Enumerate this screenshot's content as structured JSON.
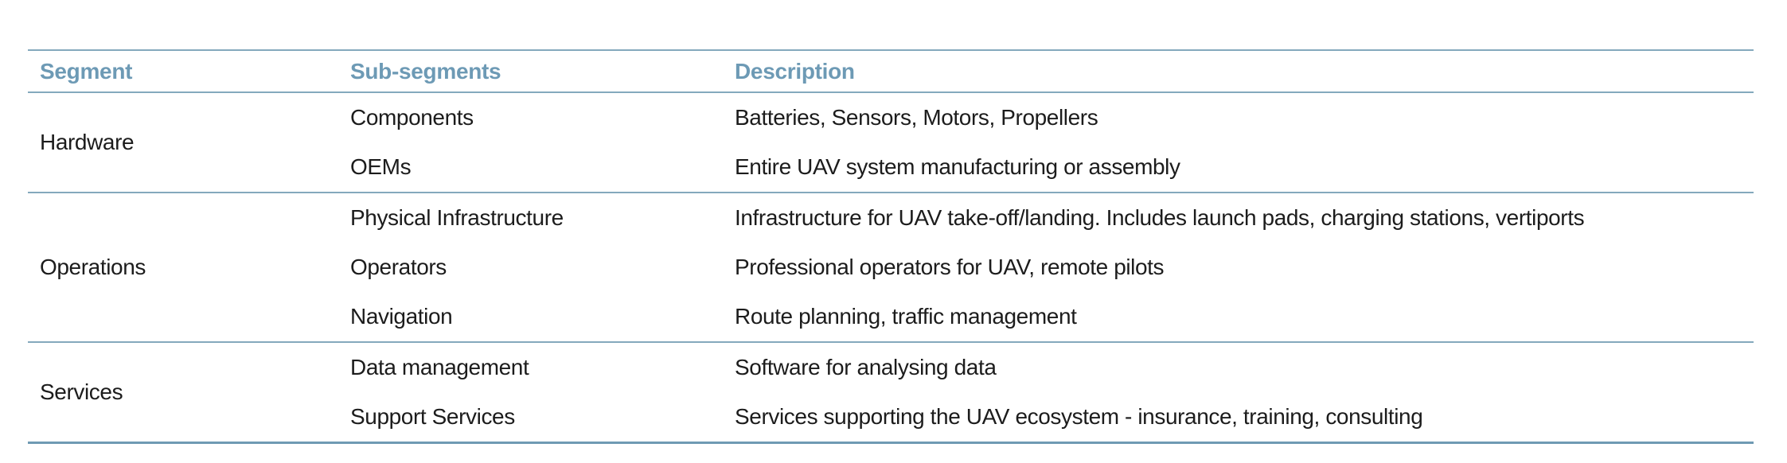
{
  "table": {
    "columns": [
      "Segment",
      "Sub-segments",
      "Description"
    ],
    "groups": [
      {
        "segment": "Hardware",
        "rows": [
          {
            "sub": "Components",
            "desc": "Batteries, Sensors, Motors, Propellers"
          },
          {
            "sub": "OEMs",
            "desc": "Entire UAV system manufacturing or assembly"
          }
        ]
      },
      {
        "segment": "Operations",
        "rows": [
          {
            "sub": "Physical Infrastructure",
            "desc": "Infrastructure for UAV take-off/landing. Includes launch pads, charging stations, vertiports"
          },
          {
            "sub": "Operators",
            "desc": "Professional operators for UAV, remote pilots"
          },
          {
            "sub": "Navigation",
            "desc": "Route planning, traffic management"
          }
        ]
      },
      {
        "segment": "Services",
        "rows": [
          {
            "sub": "Data management",
            "desc": "Software for analysing data"
          },
          {
            "sub": "Support Services",
            "desc": "Services supporting the UAV ecosystem - insurance, training, consulting"
          }
        ]
      }
    ],
    "colors": {
      "header_text": "#6d9ab5",
      "line": "#84a9bd",
      "bottom_line": "#6f9ab3",
      "body_text": "#1c1c1c",
      "background": "#ffffff"
    }
  }
}
